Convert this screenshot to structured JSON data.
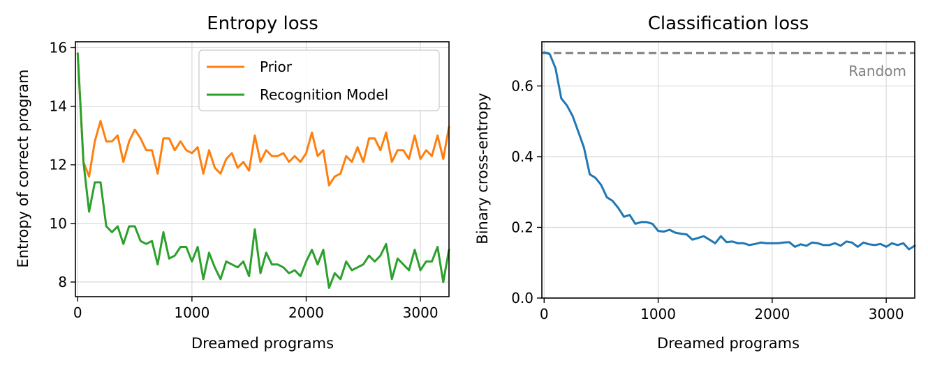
{
  "chart_data": [
    {
      "type": "line",
      "title": "Entropy loss",
      "xlabel": "Dreamed programs",
      "ylabel": "Entropy of correct program",
      "xlim": [
        -20,
        3250
      ],
      "ylim": [
        7.5,
        16.2
      ],
      "xticks": [
        0,
        1000,
        2000,
        3000
      ],
      "yticks": [
        8,
        10,
        12,
        14,
        16
      ],
      "grid": true,
      "legend": "upper right",
      "x": [
        0,
        50,
        100,
        150,
        200,
        250,
        300,
        350,
        400,
        450,
        500,
        550,
        600,
        650,
        700,
        750,
        800,
        850,
        900,
        950,
        1000,
        1050,
        1100,
        1150,
        1200,
        1250,
        1300,
        1350,
        1400,
        1450,
        1500,
        1550,
        1600,
        1650,
        1700,
        1750,
        1800,
        1850,
        1900,
        1950,
        2000,
        2050,
        2100,
        2150,
        2200,
        2250,
        2300,
        2350,
        2400,
        2450,
        2500,
        2550,
        2600,
        2650,
        2700,
        2750,
        2800,
        2850,
        2900,
        2950,
        3000,
        3050,
        3100,
        3150,
        3200,
        3250
      ],
      "series": [
        {
          "name": "Prior",
          "color": "#ff7f0e",
          "values": [
            15.8,
            12.1,
            11.6,
            12.8,
            13.5,
            12.8,
            12.8,
            13.0,
            12.1,
            12.8,
            13.2,
            12.9,
            12.5,
            12.5,
            11.7,
            12.9,
            12.9,
            12.5,
            12.8,
            12.5,
            12.4,
            12.6,
            11.7,
            12.5,
            11.9,
            11.7,
            12.2,
            12.4,
            11.9,
            12.1,
            11.8,
            13.0,
            12.1,
            12.5,
            12.3,
            12.3,
            12.4,
            12.1,
            12.3,
            12.1,
            12.4,
            13.1,
            12.3,
            12.5,
            11.3,
            11.6,
            11.7,
            12.3,
            12.1,
            12.6,
            12.1,
            12.9,
            12.9,
            12.5,
            13.1,
            12.1,
            12.5,
            12.5,
            12.2,
            13.0,
            12.2,
            12.5,
            12.3,
            13.0,
            12.2,
            13.3
          ]
        },
        {
          "name": "Recognition Model",
          "color": "#2ca02c",
          "values": [
            15.8,
            12.1,
            10.4,
            11.4,
            11.4,
            9.9,
            9.7,
            9.9,
            9.3,
            9.9,
            9.9,
            9.4,
            9.3,
            9.4,
            8.6,
            9.7,
            8.8,
            8.9,
            9.2,
            9.2,
            8.7,
            9.2,
            8.1,
            9.0,
            8.5,
            8.1,
            8.7,
            8.6,
            8.5,
            8.7,
            8.2,
            9.8,
            8.3,
            9.0,
            8.6,
            8.6,
            8.5,
            8.3,
            8.4,
            8.2,
            8.7,
            9.1,
            8.6,
            9.1,
            7.8,
            8.3,
            8.1,
            8.7,
            8.4,
            8.5,
            8.6,
            8.9,
            8.7,
            8.9,
            9.3,
            8.1,
            8.8,
            8.6,
            8.4,
            9.1,
            8.4,
            8.7,
            8.7,
            9.2,
            8.0,
            9.1
          ]
        }
      ]
    },
    {
      "type": "line",
      "title": "Classification loss",
      "xlabel": "Dreamed programs",
      "ylabel": "Binary cross-entropy",
      "xlim": [
        -20,
        3250
      ],
      "ylim": [
        0.0,
        0.725
      ],
      "xticks": [
        0,
        1000,
        2000,
        3000
      ],
      "yticks": [
        0.0,
        0.2,
        0.4,
        0.6
      ],
      "grid": true,
      "annotation": "Random",
      "reference_line": {
        "y": 0.693,
        "style": "dashed",
        "color": "#808080"
      },
      "x": [
        0,
        50,
        100,
        150,
        200,
        250,
        300,
        350,
        400,
        450,
        500,
        550,
        600,
        650,
        700,
        750,
        800,
        850,
        900,
        950,
        1000,
        1050,
        1100,
        1150,
        1200,
        1250,
        1300,
        1350,
        1400,
        1450,
        1500,
        1550,
        1600,
        1650,
        1700,
        1750,
        1800,
        1850,
        1900,
        1950,
        2000,
        2050,
        2100,
        2150,
        2200,
        2250,
        2300,
        2350,
        2400,
        2450,
        2500,
        2550,
        2600,
        2650,
        2700,
        2750,
        2800,
        2850,
        2900,
        2950,
        3000,
        3050,
        3100,
        3150,
        3200,
        3250
      ],
      "series": [
        {
          "color": "#1f77b4",
          "values": [
            0.695,
            0.69,
            0.65,
            0.565,
            0.545,
            0.515,
            0.47,
            0.425,
            0.35,
            0.34,
            0.32,
            0.285,
            0.275,
            0.255,
            0.23,
            0.235,
            0.21,
            0.215,
            0.215,
            0.21,
            0.19,
            0.188,
            0.193,
            0.185,
            0.182,
            0.18,
            0.165,
            0.17,
            0.175,
            0.165,
            0.155,
            0.175,
            0.158,
            0.16,
            0.155,
            0.155,
            0.15,
            0.153,
            0.157,
            0.155,
            0.155,
            0.155,
            0.157,
            0.158,
            0.145,
            0.152,
            0.148,
            0.157,
            0.155,
            0.15,
            0.15,
            0.155,
            0.148,
            0.16,
            0.157,
            0.145,
            0.157,
            0.152,
            0.15,
            0.153,
            0.145,
            0.155,
            0.15,
            0.155,
            0.138,
            0.148
          ]
        }
      ]
    }
  ]
}
